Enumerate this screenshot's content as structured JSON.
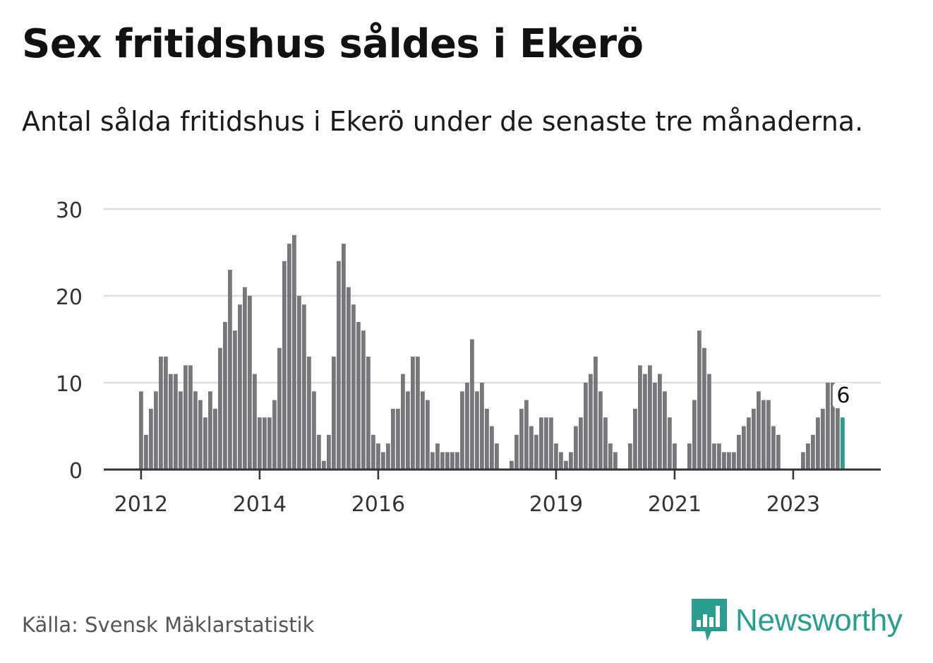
{
  "title": "Sex fritidshus såldes i Ekerö",
  "subtitle": "Antal sålda fritidshus i Ekerö under de senaste tre månaderna.",
  "source": "Källa: Svensk Mäklarstatistik",
  "brand": "Newsworthy",
  "colors": {
    "bar": "#77767a",
    "highlight": "#2a9d8f",
    "grid": "#dddddd",
    "axis": "#333333",
    "brand": "#2a9d8f"
  },
  "chart_data": {
    "type": "bar",
    "title": "Sex fritidshus såldes i Ekerö",
    "xlabel": "",
    "ylabel": "",
    "ylim": [
      0,
      30
    ],
    "yticks": [
      0,
      10,
      20,
      30
    ],
    "grid": true,
    "x_tick_labels": [
      {
        "label": "2012",
        "index": 0
      },
      {
        "label": "2014",
        "index": 24
      },
      {
        "label": "2016",
        "index": 48
      },
      {
        "label": "2019",
        "index": 84
      },
      {
        "label": "2021",
        "index": 108
      },
      {
        "label": "2023",
        "index": 132
      }
    ],
    "series": [
      {
        "name": "Antal sålda fritidshus",
        "values": [
          9,
          4,
          7,
          9,
          13,
          13,
          11,
          11,
          9,
          12,
          12,
          9,
          8,
          6,
          9,
          7,
          14,
          17,
          23,
          16,
          19,
          21,
          20,
          11,
          6,
          6,
          6,
          8,
          14,
          24,
          26,
          27,
          20,
          19,
          13,
          9,
          4,
          1,
          4,
          13,
          24,
          26,
          21,
          19,
          17,
          16,
          13,
          4,
          3,
          2,
          3,
          7,
          7,
          11,
          9,
          13,
          13,
          9,
          8,
          2,
          3,
          2,
          2,
          2,
          2,
          9,
          10,
          15,
          9,
          10,
          7,
          5,
          3,
          0,
          0,
          1,
          4,
          7,
          8,
          5,
          4,
          6,
          6,
          6,
          3,
          2,
          1,
          2,
          5,
          6,
          10,
          11,
          13,
          9,
          6,
          3,
          2,
          0,
          0,
          3,
          7,
          12,
          11,
          12,
          10,
          11,
          9,
          6,
          3,
          0,
          0,
          3,
          8,
          16,
          14,
          11,
          3,
          3,
          2,
          2,
          2,
          4,
          5,
          6,
          7,
          9,
          8,
          8,
          5,
          4,
          0,
          0,
          0,
          0,
          2,
          3,
          4,
          6,
          7,
          10,
          10,
          8,
          6
        ]
      }
    ],
    "highlight": {
      "index": 142,
      "label": "6"
    }
  }
}
